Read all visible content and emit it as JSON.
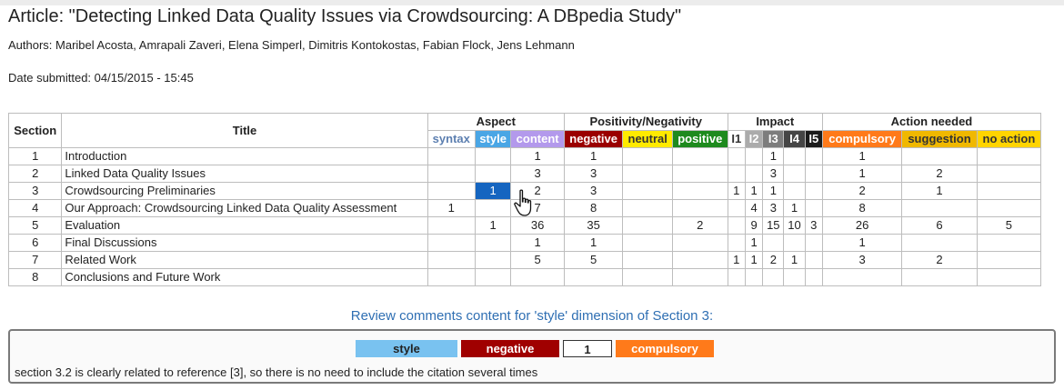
{
  "article": {
    "title": "Article: \"Detecting Linked Data Quality Issues via Crowdsourcing: A DBpedia Study\"",
    "authors": "Authors: Maribel Acosta, Amrapali Zaveri, Elena Simperl, Dimitris Kontokostas, Fabian Flock, Jens Lehmann",
    "date": "Date submitted: 04/15/2015 - 15:45"
  },
  "table": {
    "col_section": "Section",
    "col_title": "Title",
    "groups": {
      "aspect": "Aspect",
      "positivity": "Positivity/Negativity",
      "impact": "Impact",
      "action": "Action needed"
    },
    "subcols": {
      "syntax": "syntax",
      "style": "style",
      "content": "content",
      "negative": "negative",
      "neutral": "neutral",
      "positive": "positive",
      "i1": "I1",
      "i2": "I2",
      "i3": "I3",
      "i4": "I4",
      "i5": "I5",
      "compulsory": "compulsory",
      "suggestion": "suggestion",
      "noaction": "no action"
    },
    "rows": [
      {
        "section": "1",
        "title": "Introduction",
        "syntax": "",
        "style": "",
        "content": "1",
        "negative": "1",
        "neutral": "",
        "positive": "",
        "i1": "",
        "i2": "",
        "i3": "1",
        "i4": "",
        "i5": "",
        "compulsory": "1",
        "suggestion": "",
        "noaction": ""
      },
      {
        "section": "2",
        "title": "Linked Data Quality Issues",
        "syntax": "",
        "style": "",
        "content": "3",
        "negative": "3",
        "neutral": "",
        "positive": "",
        "i1": "",
        "i2": "",
        "i3": "3",
        "i4": "",
        "i5": "",
        "compulsory": "1",
        "suggestion": "2",
        "noaction": ""
      },
      {
        "section": "3",
        "title": "Crowdsourcing Preliminaries",
        "syntax": "",
        "style": "1",
        "content": "2",
        "negative": "3",
        "neutral": "",
        "positive": "",
        "i1": "1",
        "i2": "1",
        "i3": "1",
        "i4": "",
        "i5": "",
        "compulsory": "2",
        "suggestion": "1",
        "noaction": ""
      },
      {
        "section": "4",
        "title": "Our Approach: Crowdsourcing Linked Data Quality Assessment",
        "syntax": "1",
        "style": "",
        "content": "7",
        "negative": "8",
        "neutral": "",
        "positive": "",
        "i1": "",
        "i2": "4",
        "i3": "3",
        "i4": "1",
        "i5": "",
        "compulsory": "8",
        "suggestion": "",
        "noaction": ""
      },
      {
        "section": "5",
        "title": "Evaluation",
        "syntax": "",
        "style": "1",
        "content": "36",
        "negative": "35",
        "neutral": "",
        "positive": "2",
        "i1": "",
        "i2": "9",
        "i3": "15",
        "i4": "10",
        "i5": "3",
        "compulsory": "26",
        "suggestion": "6",
        "noaction": "5"
      },
      {
        "section": "6",
        "title": "Final Discussions",
        "syntax": "",
        "style": "",
        "content": "1",
        "negative": "1",
        "neutral": "",
        "positive": "",
        "i1": "",
        "i2": "1",
        "i3": "",
        "i4": "",
        "i5": "",
        "compulsory": "1",
        "suggestion": "",
        "noaction": ""
      },
      {
        "section": "7",
        "title": "Related Work",
        "syntax": "",
        "style": "",
        "content": "5",
        "negative": "5",
        "neutral": "",
        "positive": "",
        "i1": "1",
        "i2": "1",
        "i3": "2",
        "i4": "1",
        "i5": "",
        "compulsory": "3",
        "suggestion": "2",
        "noaction": ""
      },
      {
        "section": "8",
        "title": "Conclusions and Future Work",
        "syntax": "",
        "style": "",
        "content": "",
        "negative": "",
        "neutral": "",
        "positive": "",
        "i1": "",
        "i2": "",
        "i3": "",
        "i4": "",
        "i5": "",
        "compulsory": "",
        "suggestion": "",
        "noaction": ""
      }
    ]
  },
  "review": {
    "caption": "Review comments content for 'style' dimension of Section 3:",
    "tag_style": "style",
    "tag_negative": "negative",
    "tag_impact": "1",
    "tag_action": "compulsory",
    "comment": "section 3.2 is clearly related to reference [3], so there is no need to include the citation several times"
  },
  "icons": {
    "cursor": "hand-pointer-icon"
  }
}
